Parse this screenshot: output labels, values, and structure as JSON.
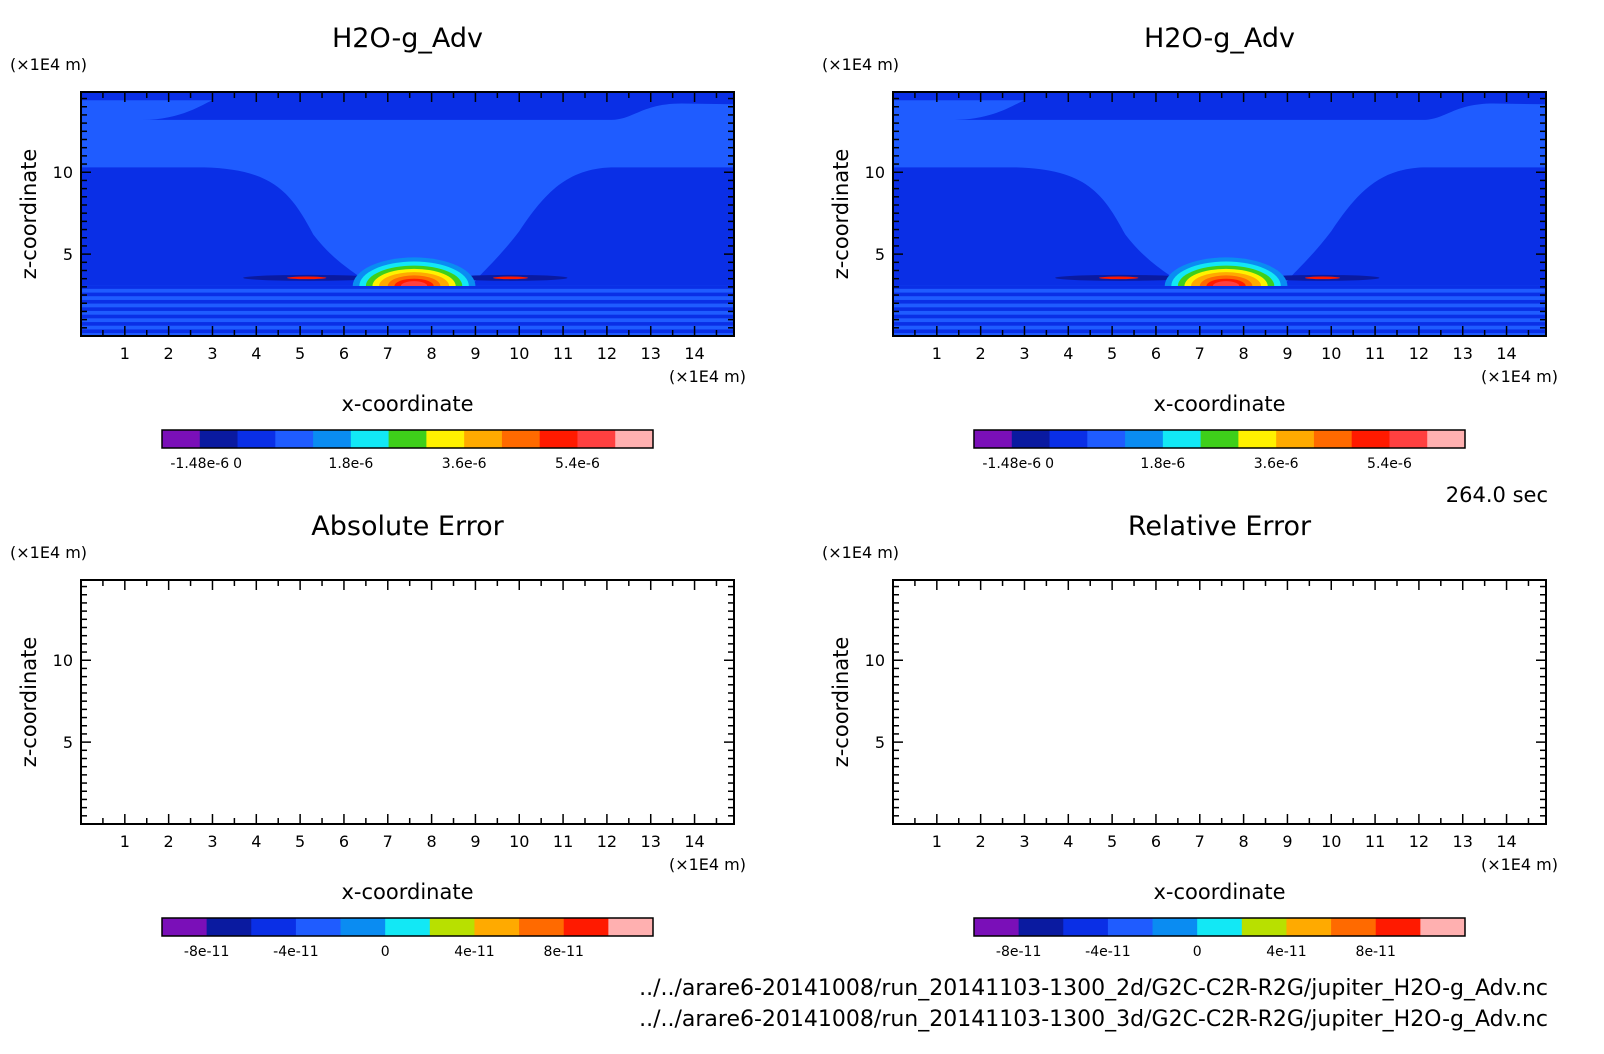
{
  "time_label": "264.0 sec",
  "file_paths": [
    "../../arare6-20141008/run_20141103-1300_2d/G2C-C2R-R2G/jupiter_H2O-g_Adv.nc",
    "../../arare6-20141008/run_20141103-1300_3d/G2C-C2R-R2G/jupiter_H2O-g_Adv.nc"
  ],
  "colors": {
    "background_level": "#1f5cff",
    "deep_level": "#0a2fe6",
    "frame": "#000000"
  },
  "chart_data": [
    {
      "type": "heatmap",
      "title": "H2O-g_Adv",
      "xlabel": "x-coordinate",
      "ylabel": "z-coordinate",
      "x_unit": "(×1E4 m)",
      "y_unit": "(×1E4 m)",
      "xlim": [
        0,
        14.9
      ],
      "ylim": [
        0,
        14.9
      ],
      "x_ticks": [
        "1",
        "2",
        "3",
        "4",
        "5",
        "6",
        "7",
        "8",
        "9",
        "10",
        "11",
        "12",
        "13",
        "14"
      ],
      "y_ticks": [
        "5",
        "10"
      ],
      "has_field": true,
      "colorbar": {
        "colors": [
          "#7a0fb8",
          "#0a1aa0",
          "#0a2fe6",
          "#1f5cff",
          "#0a8cf2",
          "#12e8f5",
          "#3ecf1a",
          "#fff200",
          "#ffaa00",
          "#ff6a00",
          "#ff1a00",
          "#ff4040",
          "#ffb0b0"
        ],
        "tick_labels": [
          "-1.48e-6",
          "0",
          "1.8e-6",
          "3.6e-6",
          "5.4e-6"
        ],
        "tick_edges": [
          1,
          2,
          5,
          8,
          11
        ]
      }
    },
    {
      "type": "heatmap",
      "title": "H2O-g_Adv",
      "xlabel": "x-coordinate",
      "ylabel": "z-coordinate",
      "x_unit": "(×1E4 m)",
      "y_unit": "(×1E4 m)",
      "xlim": [
        0,
        14.9
      ],
      "ylim": [
        0,
        14.9
      ],
      "x_ticks": [
        "1",
        "2",
        "3",
        "4",
        "5",
        "6",
        "7",
        "8",
        "9",
        "10",
        "11",
        "12",
        "13",
        "14"
      ],
      "y_ticks": [
        "5",
        "10"
      ],
      "has_field": true,
      "colorbar": {
        "colors": [
          "#7a0fb8",
          "#0a1aa0",
          "#0a2fe6",
          "#1f5cff",
          "#0a8cf2",
          "#12e8f5",
          "#3ecf1a",
          "#fff200",
          "#ffaa00",
          "#ff6a00",
          "#ff1a00",
          "#ff4040",
          "#ffb0b0"
        ],
        "tick_labels": [
          "-1.48e-6",
          "0",
          "1.8e-6",
          "3.6e-6",
          "5.4e-6"
        ],
        "tick_edges": [
          1,
          2,
          5,
          8,
          11
        ]
      }
    },
    {
      "type": "heatmap",
      "title": "Absolute Error",
      "xlabel": "x-coordinate",
      "ylabel": "z-coordinate",
      "x_unit": "(×1E4 m)",
      "y_unit": "(×1E4 m)",
      "xlim": [
        0,
        14.9
      ],
      "ylim": [
        0,
        14.9
      ],
      "x_ticks": [
        "1",
        "2",
        "3",
        "4",
        "5",
        "6",
        "7",
        "8",
        "9",
        "10",
        "11",
        "12",
        "13",
        "14"
      ],
      "y_ticks": [
        "5",
        "10"
      ],
      "has_field": false,
      "colorbar": {
        "colors": [
          "#7a0fb8",
          "#0a1aa0",
          "#0a2fe6",
          "#1f5cff",
          "#0a8cf2",
          "#12e8f5",
          "#b8e000",
          "#ffaa00",
          "#ff6a00",
          "#ff1a00",
          "#ffb0b0"
        ],
        "tick_labels": [
          "-8e-11",
          "-4e-11",
          "0",
          "4e-11",
          "8e-11"
        ],
        "tick_edges": [
          1,
          3,
          5,
          7,
          9
        ]
      }
    },
    {
      "type": "heatmap",
      "title": "Relative Error",
      "xlabel": "x-coordinate",
      "ylabel": "z-coordinate",
      "x_unit": "(×1E4 m)",
      "y_unit": "(×1E4 m)",
      "xlim": [
        0,
        14.9
      ],
      "ylim": [
        0,
        14.9
      ],
      "x_ticks": [
        "1",
        "2",
        "3",
        "4",
        "5",
        "6",
        "7",
        "8",
        "9",
        "10",
        "11",
        "12",
        "13",
        "14"
      ],
      "y_ticks": [
        "5",
        "10"
      ],
      "has_field": false,
      "colorbar": {
        "colors": [
          "#7a0fb8",
          "#0a1aa0",
          "#0a2fe6",
          "#1f5cff",
          "#0a8cf2",
          "#12e8f5",
          "#b8e000",
          "#ffaa00",
          "#ff6a00",
          "#ff1a00",
          "#ffb0b0"
        ],
        "tick_labels": [
          "-8e-11",
          "-4e-11",
          "0",
          "4e-11",
          "8e-11"
        ],
        "tick_edges": [
          1,
          3,
          5,
          7,
          9
        ]
      }
    }
  ]
}
